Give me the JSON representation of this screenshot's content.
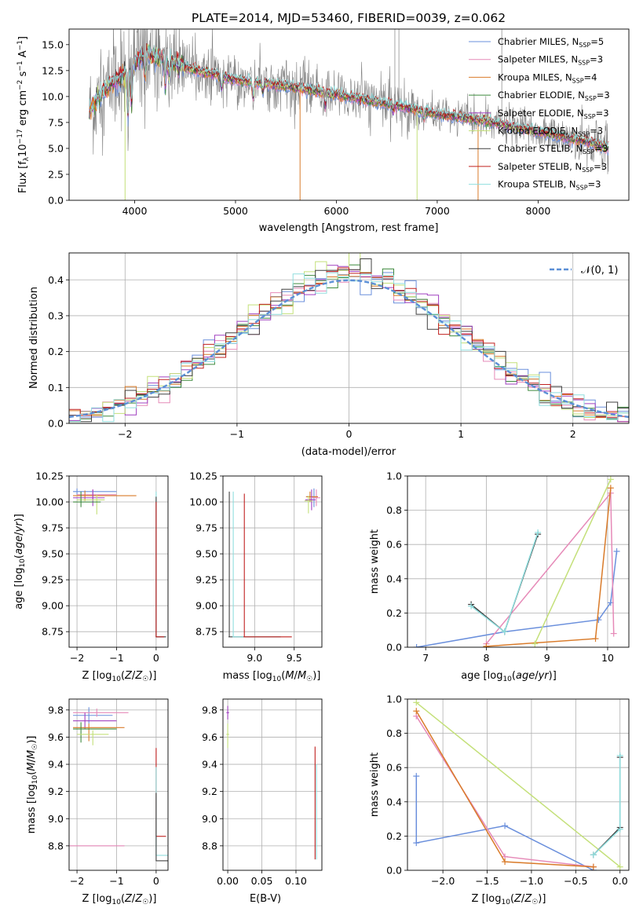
{
  "chart_data": [
    {
      "type": "line",
      "title": "PLATE=2014, MJD=53460, FIBERID=0039, z=0.062",
      "xlabel": "wavelength [Angstrom, rest frame]",
      "ylabel": "Flux [f_λ 10^-17 erg cm^-2 s^-1 A^-1]",
      "xlim": [
        3350,
        8900
      ],
      "ylim": [
        0,
        16.5
      ],
      "xticks": [
        "4000",
        "5000",
        "6000",
        "7000",
        "8000"
      ],
      "yticks": [
        "0.0",
        "2.5",
        "5.0",
        "7.5",
        "10.0",
        "12.5",
        "15.0"
      ],
      "grid": false,
      "legend_position": "top-right",
      "colors": {
        "data": "#808080",
        "Chabrier MILES": "#6a8fdc",
        "Salpeter MILES": "#e68ab8",
        "Kroupa MILES": "#d97b2a",
        "Chabrier ELODIE": "#3e8a3e",
        "Salpeter ELODIE": "#a040c0",
        "Kroupa ELODIE": "#c4e07a",
        "Chabrier STELIB": "#404040",
        "Salpeter STELIB": "#c0201f",
        "Kroupa STELIB": "#8fdede"
      },
      "series": [
        {
          "name": "Chabrier MILES, N_SSP=5"
        },
        {
          "name": "Salpeter MILES, N_SSP=3"
        },
        {
          "name": "Kroupa MILES, N_SSP=4"
        },
        {
          "name": "Chabrier ELODIE, N_SSP=3"
        },
        {
          "name": "Salpeter ELODIE, N_SSP=3"
        },
        {
          "name": "Kroupa ELODIE, N_SSP=3"
        },
        {
          "name": "Chabrier STELIB, N_SSP=3"
        },
        {
          "name": "Salpeter STELIB, N_SSP=3"
        },
        {
          "name": "Kroupa STELIB, N_SSP=3"
        }
      ],
      "continuum_approx": {
        "wavelength": [
          3550,
          3650,
          3800,
          3900,
          4000,
          4100,
          4200,
          4500,
          5000,
          5500,
          6000,
          6500,
          7000,
          7500,
          8000,
          8500,
          8700
        ],
        "flux": [
          8.6,
          10.0,
          11.5,
          12.0,
          13.3,
          14.1,
          13.9,
          12.8,
          11.6,
          11.0,
          10.2,
          9.3,
          8.3,
          7.6,
          6.6,
          5.6,
          5.0
        ]
      }
    },
    {
      "type": "line",
      "xlabel": "(data-model)/error",
      "ylabel": "Normed distribution",
      "xlim": [
        -2.5,
        2.5
      ],
      "ylim": [
        0,
        0.475
      ],
      "xticks": [
        "−2",
        "−1",
        "0",
        "1",
        "2"
      ],
      "yticks": [
        "0.0",
        "0.1",
        "0.2",
        "0.3",
        "0.4"
      ],
      "grid": true,
      "legend_position": "top-right",
      "reference_curve": {
        "name": "𝒩(0, 1)",
        "style": "dashed",
        "color": "#5b8fd6"
      },
      "histograms": "step histograms of normalized residuals, one per model (9 models), bin width ≈ 0.1"
    },
    {
      "type": "scatter",
      "xlabel": "Z [log10(Z/Z☉)]",
      "ylabel": "age  [log10(age/yr)]",
      "xlim": [
        -2.2,
        0.3
      ],
      "ylim": [
        8.6,
        10.25
      ],
      "xticks": [
        "−2",
        "−1",
        "0"
      ],
      "yticks": [
        "8.75",
        "9.00",
        "9.25",
        "9.50",
        "9.75",
        "10.00",
        "10.25"
      ],
      "grid": true
    },
    {
      "type": "scatter",
      "xlabel": "mass [log10(M/M☉)]",
      "xlim": [
        8.6,
        9.85
      ],
      "ylim": [
        8.6,
        10.25
      ],
      "xticks": [
        "9.0",
        "9.5"
      ],
      "yticks": [
        "8.75",
        "9.00",
        "9.25",
        "9.50",
        "9.75",
        "10.00",
        "10.25"
      ],
      "grid": true
    },
    {
      "type": "line",
      "xlabel": "age  [log10(age/yr)]",
      "ylabel": "mass weight",
      "xlim": [
        6.7,
        10.35
      ],
      "ylim": [
        0,
        1.0
      ],
      "xticks": [
        "7",
        "8",
        "9",
        "10"
      ],
      "yticks": [
        "0.0",
        "0.2",
        "0.4",
        "0.6",
        "0.8",
        "1.0"
      ],
      "grid": true,
      "series": [
        {
          "color": "#6a8fdc",
          "x": [
            6.85,
            8.3,
            9.85,
            10.05,
            10.15
          ],
          "y": [
            0.0,
            0.09,
            0.16,
            0.26,
            0.56
          ]
        },
        {
          "color": "#e68ab8",
          "x": [
            8.0,
            10.05,
            10.1
          ],
          "y": [
            0.02,
            0.9,
            0.08
          ]
        },
        {
          "color": "#d97b2a",
          "x": [
            8.0,
            9.8,
            10.05
          ],
          "y": [
            0.005,
            0.05,
            0.93
          ]
        },
        {
          "color": "#c4e07a",
          "x": [
            8.8,
            10.05
          ],
          "y": [
            0.02,
            0.98
          ]
        },
        {
          "color": "#404040",
          "x": [
            7.75,
            8.3,
            8.85
          ],
          "y": [
            0.25,
            0.09,
            0.66
          ]
        },
        {
          "color": "#8fdede",
          "x": [
            7.75,
            8.3,
            8.85
          ],
          "y": [
            0.24,
            0.09,
            0.67
          ]
        }
      ]
    },
    {
      "type": "scatter",
      "xlabel": "Z [log10(Z/Z☉)]",
      "ylabel": "mass [log10(M/M☉)]",
      "xlim": [
        -2.2,
        0.3
      ],
      "ylim": [
        8.62,
        9.88
      ],
      "xticks": [
        "−2",
        "−1",
        "0"
      ],
      "yticks": [
        "8.8",
        "9.0",
        "9.2",
        "9.4",
        "9.6",
        "9.8"
      ],
      "grid": true
    },
    {
      "type": "scatter",
      "xlabel": "E(B-V)",
      "xlim": [
        -0.007,
        0.138
      ],
      "ylim": [
        8.62,
        9.88
      ],
      "xticks": [
        "0.00",
        "0.05",
        "0.10"
      ],
      "yticks": [
        "8.8",
        "9.0",
        "9.2",
        "9.4",
        "9.6",
        "9.8"
      ],
      "grid": true
    },
    {
      "type": "line",
      "xlabel": "Z [log10(Z/Z☉)]",
      "ylabel": "mass weight",
      "xlim": [
        -2.4,
        0.1
      ],
      "ylim": [
        0,
        1.0
      ],
      "xticks": [
        "−2.0",
        "−1.5",
        "−1.0",
        "−0.5",
        "0.0"
      ],
      "yticks": [
        "0.0",
        "0.2",
        "0.4",
        "0.6",
        "0.8",
        "1.0"
      ],
      "grid": true,
      "series": [
        {
          "color": "#6a8fdc",
          "x": [
            -2.3,
            -2.3,
            -1.3,
            -0.3,
            -0.3
          ],
          "y": [
            0.55,
            0.16,
            0.26,
            0.0,
            0.0
          ]
        },
        {
          "color": "#e68ab8",
          "x": [
            -2.3,
            -1.3,
            -0.3
          ],
          "y": [
            0.9,
            0.08,
            0.02
          ]
        },
        {
          "color": "#d97b2a",
          "x": [
            -2.3,
            -1.3,
            -0.3
          ],
          "y": [
            0.93,
            0.05,
            0.02
          ]
        },
        {
          "color": "#c4e07a",
          "x": [
            -2.3,
            0.0
          ],
          "y": [
            0.98,
            0.02
          ]
        },
        {
          "color": "#404040",
          "x": [
            -0.3,
            0.0,
            0.0
          ],
          "y": [
            0.09,
            0.25,
            0.66
          ]
        },
        {
          "color": "#8fdede",
          "x": [
            -0.3,
            0.0,
            0.0
          ],
          "y": [
            0.09,
            0.24,
            0.67
          ]
        }
      ]
    }
  ]
}
